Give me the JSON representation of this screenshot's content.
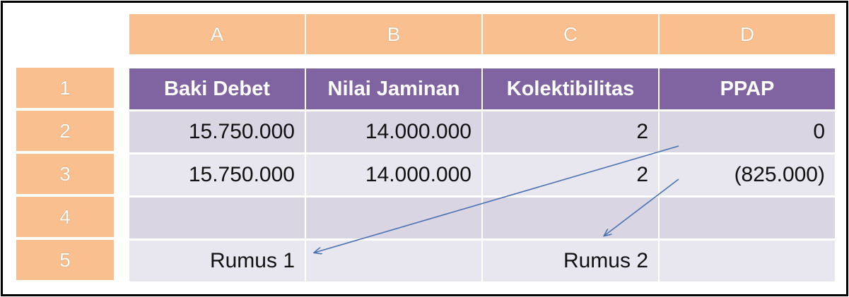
{
  "columns": [
    "A",
    "B",
    "C",
    "D"
  ],
  "rows": [
    "1",
    "2",
    "3",
    "4",
    "5"
  ],
  "table": {
    "headers": [
      "Baki Debet",
      "Nilai Jaminan",
      "Kolektibilitas",
      "PPAP"
    ],
    "data": [
      [
        "15.750.000",
        "14.000.000",
        "2",
        "0"
      ],
      [
        "15.750.000",
        "14.000.000",
        "2",
        "(825.000)"
      ],
      [
        "",
        "",
        "",
        ""
      ],
      [
        "Rumus 1",
        "",
        "Rumus 2",
        ""
      ]
    ]
  },
  "colors": {
    "header_orange": "#f9bf8f",
    "table_header_purple": "#8064a2",
    "row_band_dark": "#d9d5e2",
    "row_band_light": "#e8e6ee",
    "arrow": "#4a72b0"
  }
}
